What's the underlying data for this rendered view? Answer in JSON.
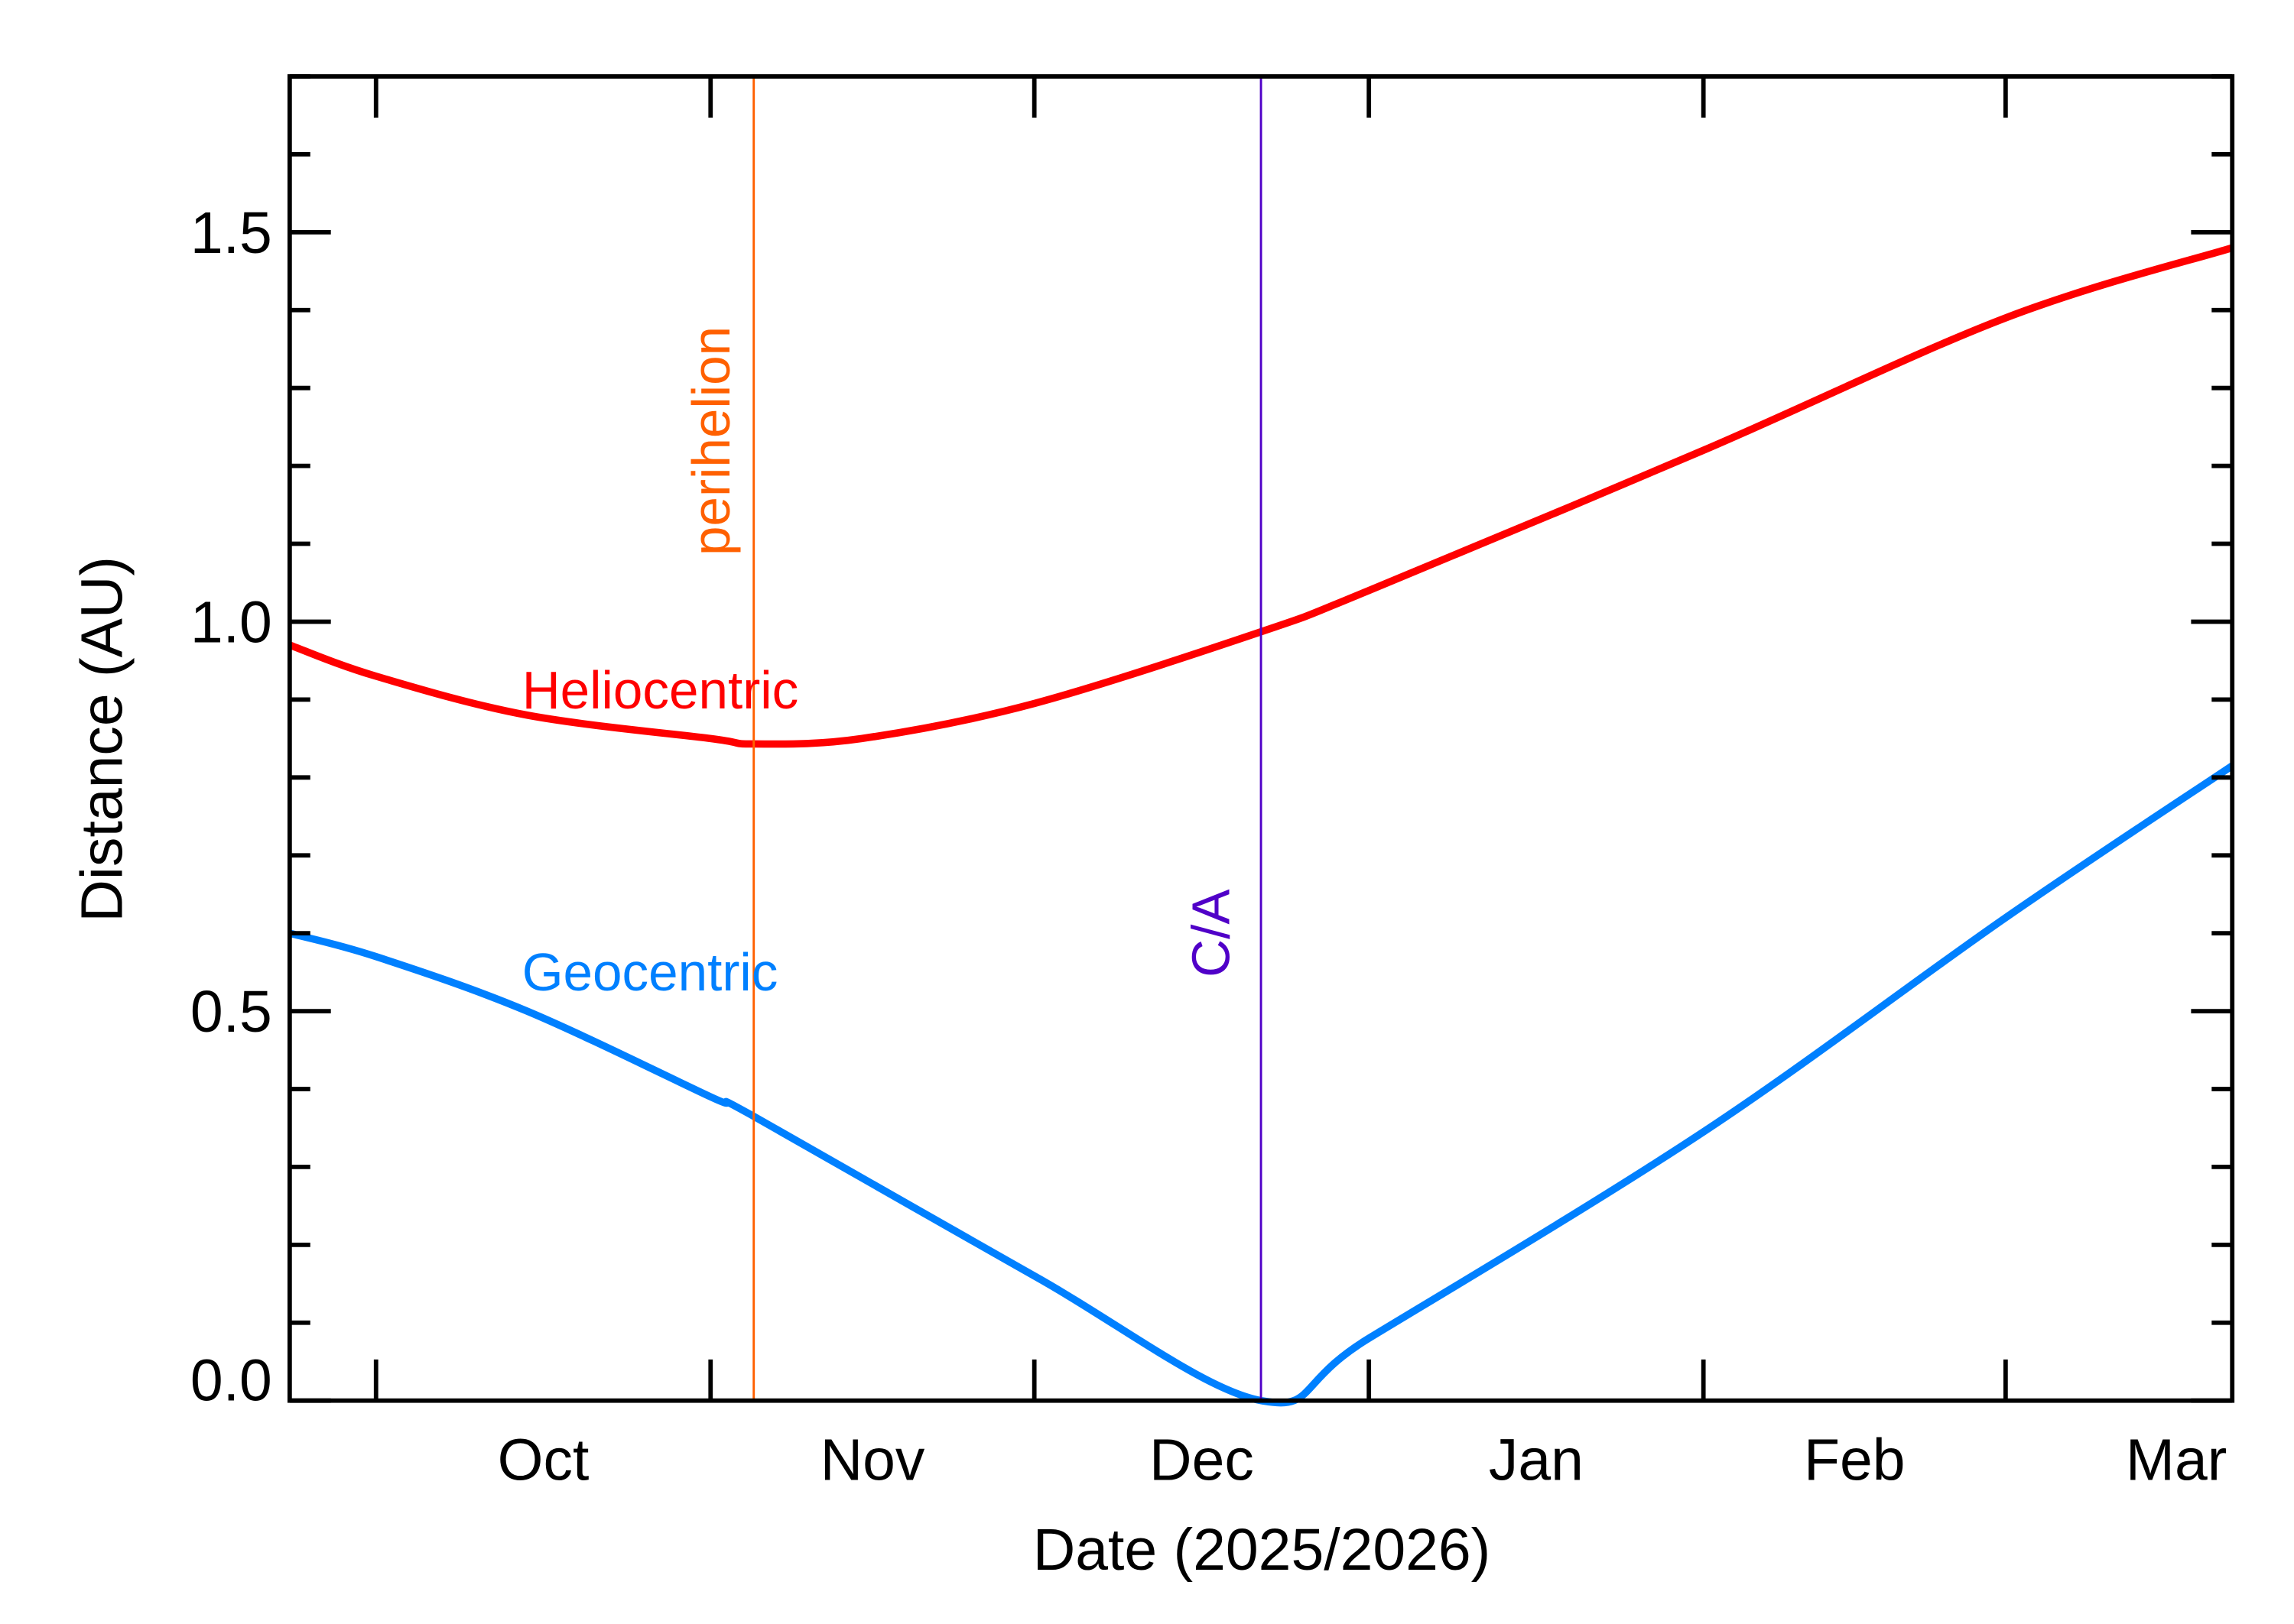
{
  "chart_data": {
    "type": "line",
    "title": "",
    "xlabel": "Date (2025/2026)",
    "ylabel": "Distance (AU)",
    "xlim": [
      "2025-09-23",
      "2026-03-22"
    ],
    "ylim": [
      0,
      1.7
    ],
    "grid": false,
    "x_ticks": [
      {
        "date": "2025-10-01",
        "label": "Oct"
      },
      {
        "date": "2025-11-01",
        "label": "Nov"
      },
      {
        "date": "2025-12-01",
        "label": "Dec"
      },
      {
        "date": "2026-01-01",
        "label": "Jan"
      },
      {
        "date": "2026-02-01",
        "label": "Feb"
      },
      {
        "date": "2026-03-01",
        "label": "Mar"
      }
    ],
    "y_ticks": [
      {
        "value": 0.0,
        "label": "0.0"
      },
      {
        "value": 0.5,
        "label": "0.5"
      },
      {
        "value": 1.0,
        "label": "1.0"
      },
      {
        "value": 1.5,
        "label": "1.5"
      }
    ],
    "y_minor_step": 0.1,
    "series": [
      {
        "name": "Heliocentric",
        "color": "#ff0000",
        "points": [
          [
            "2025-09-23",
            0.97
          ],
          [
            "2025-10-01",
            0.93
          ],
          [
            "2025-10-15",
            0.88
          ],
          [
            "2025-11-01",
            0.85
          ],
          [
            "2025-11-05",
            0.843
          ],
          [
            "2025-11-15",
            0.85
          ],
          [
            "2025-12-01",
            0.895
          ],
          [
            "2025-12-22",
            0.987
          ],
          [
            "2026-01-01",
            1.04
          ],
          [
            "2026-02-01",
            1.22
          ],
          [
            "2026-03-01",
            1.39
          ],
          [
            "2026-03-22",
            1.48
          ]
        ]
      },
      {
        "name": "Geocentric",
        "color": "#0080ff",
        "points": [
          [
            "2025-09-23",
            0.6
          ],
          [
            "2025-10-01",
            0.57
          ],
          [
            "2025-10-15",
            0.5
          ],
          [
            "2025-11-01",
            0.39
          ],
          [
            "2025-11-05",
            0.365
          ],
          [
            "2025-12-01",
            0.16
          ],
          [
            "2025-12-22",
            0.0
          ],
          [
            "2026-01-01",
            0.08
          ],
          [
            "2026-02-01",
            0.345
          ],
          [
            "2026-03-01",
            0.62
          ],
          [
            "2026-03-22",
            0.815
          ]
        ]
      }
    ],
    "annotations": [
      {
        "label": "perihelion",
        "date": "2025-11-05",
        "color": "#ff6000"
      },
      {
        "label": "C/A",
        "date": "2025-12-22",
        "color": "#5000c8"
      }
    ]
  }
}
